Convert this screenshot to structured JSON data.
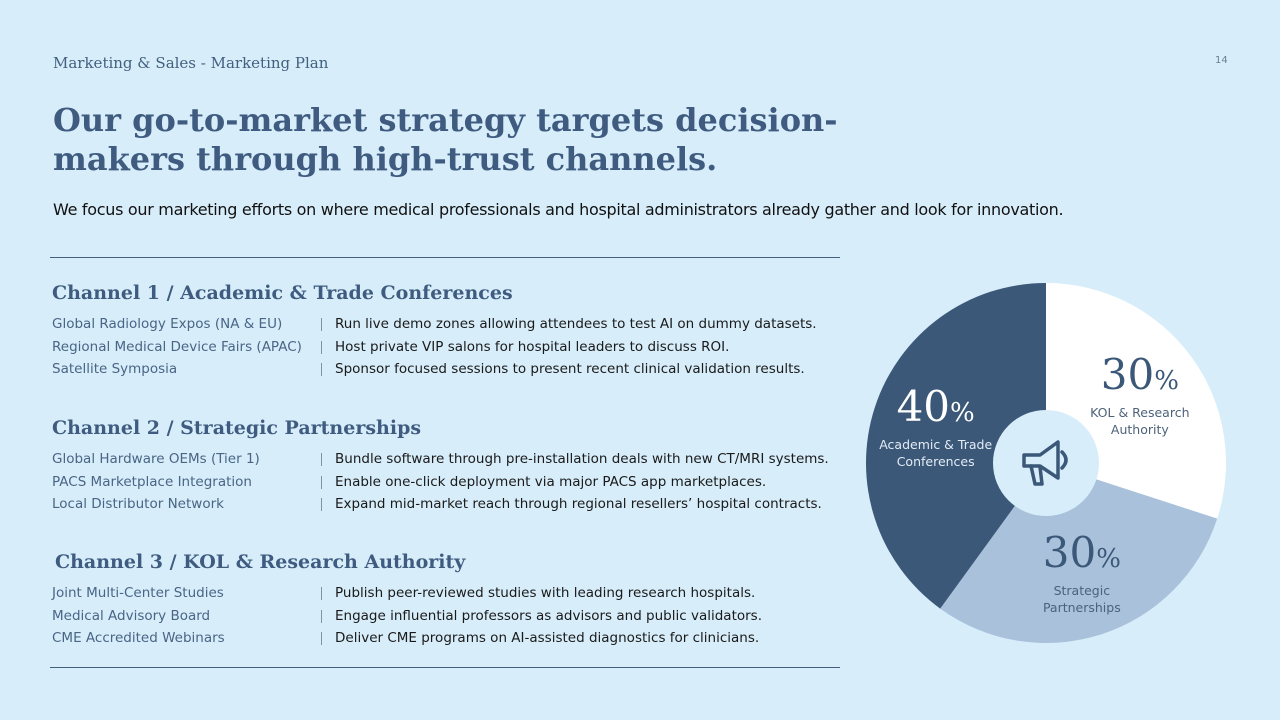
{
  "header": {
    "section": "Marketing & Sales - Marketing Plan",
    "page": "14"
  },
  "title": "Our go-to-market strategy targets decision-makers through high-trust channels.",
  "subtitle": "We focus our marketing efforts on where medical professionals and hospital administrators already gather and look for innovation.",
  "channels": [
    {
      "heading": "Channel 1 / Academic & Trade Conferences",
      "rows": [
        [
          "Global Radiology Expos (NA & EU)",
          "Run live demo zones allowing attendees to test AI on dummy datasets."
        ],
        [
          "Regional Medical Device Fairs (APAC)",
          "Host private VIP salons for hospital leaders to discuss ROI."
        ],
        [
          "Satellite Symposia",
          "Sponsor focused sessions to present recent clinical validation results."
        ]
      ]
    },
    {
      "heading": "Channel 2 / Strategic Partnerships",
      "rows": [
        [
          "Global Hardware OEMs (Tier 1)",
          "Bundle software through pre-installation deals with new CT/MRI systems."
        ],
        [
          "PACS Marketplace Integration",
          "Enable one-click deployment via major PACS app marketplaces."
        ],
        [
          "Local Distributor Network",
          "Expand mid-market reach through regional resellers’ hospital contracts."
        ]
      ]
    },
    {
      "heading": "Channel 3 / KOL & Research Authority",
      "rows": [
        [
          "Joint Multi-Center Studies",
          "Publish peer-reviewed studies with leading research hospitals."
        ],
        [
          "Medical Advisory Board",
          "Engage influential professors as advisors and public validators."
        ],
        [
          "CME Accredited Webinars",
          "Deliver CME programs on AI-assisted diagnostics for clinicians."
        ]
      ]
    }
  ],
  "chart_data": {
    "type": "pie",
    "categories": [
      "KOL & Research Authority",
      "Strategic Partnerships",
      "Academic & Trade Conferences"
    ],
    "values": [
      30,
      30,
      40
    ],
    "unit": "%",
    "colors": [
      "#ffffff",
      "#a9c1da",
      "#3b5878"
    ]
  }
}
